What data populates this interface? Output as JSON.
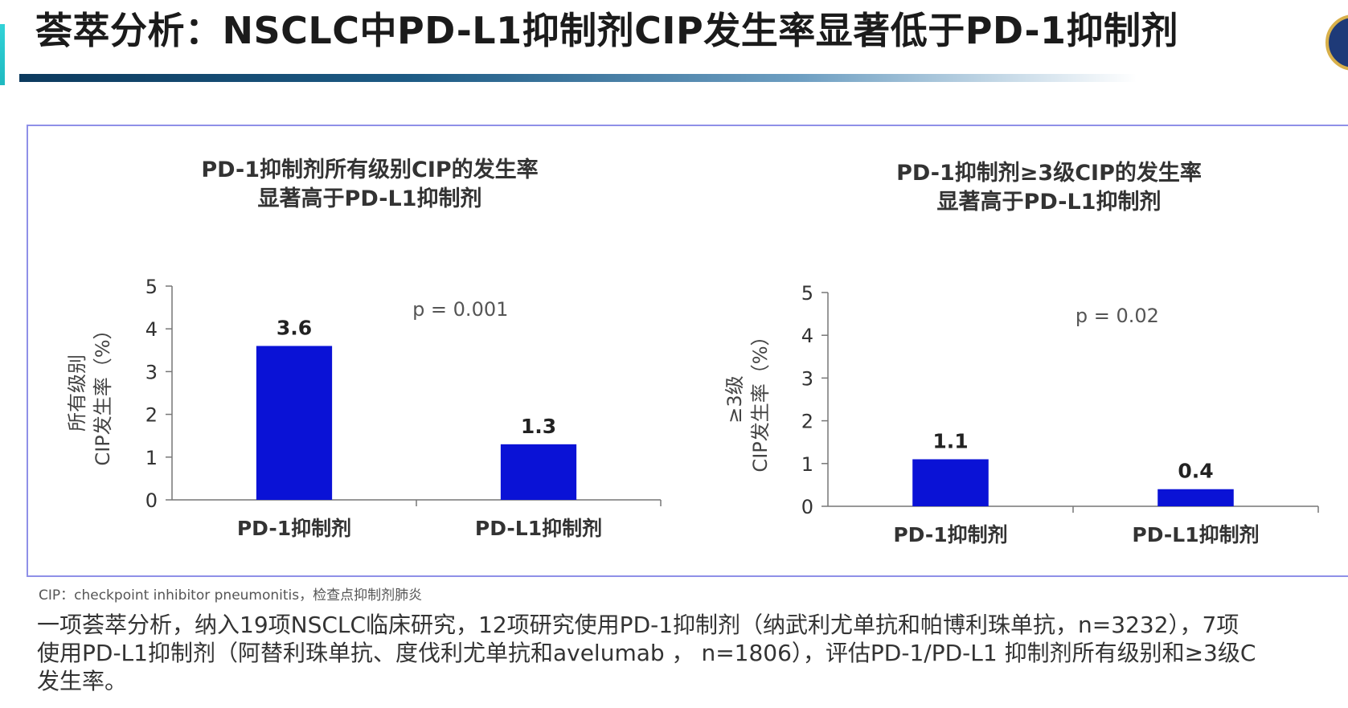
{
  "slide": {
    "title": "荟萃分析：NSCLC中PD-L1抑制剂CIP发生率显著低于PD-1抑制剂",
    "footnote": "CIP：checkpoint inhibitor pneumonitis，检查点抑制剂肺炎",
    "body_lines": [
      "一项荟萃分析，纳入19项NSCLC临床研究，12项研究使用PD-1抑制剂（纳武利尤单抗和帕博利珠单抗，n=3232），7项",
      "使用PD-L1抑制剂（阿替利珠单抗、度伐利尤单抗和avelumab ， n=1806），评估PD-1/PD-L1 抑制剂所有级别和≥3级C",
      "发生率。"
    ]
  },
  "chart_data": [
    {
      "type": "bar",
      "title": "PD-1抑制剂所有级别CIP的发生率",
      "subtitle": "显著高于PD-L1抑制剂",
      "ylabel_line1": "所有级别",
      "ylabel_line2": "CIP发生率（%）",
      "categories": [
        "PD-1抑制剂",
        "PD-L1抑制剂"
      ],
      "values": [
        3.6,
        1.3
      ],
      "value_labels": [
        "3.6",
        "1.3"
      ],
      "annotation": "p = 0.001",
      "ylim": [
        0,
        5
      ],
      "yticks": [
        "0",
        "1",
        "2",
        "3",
        "4",
        "5"
      ],
      "grid": false,
      "bar_color": "#0a12d6"
    },
    {
      "type": "bar",
      "title": "PD-1抑制剂≥3级CIP的发生率",
      "subtitle": "显著高于PD-L1抑制剂",
      "ylabel_line1": "≥3级",
      "ylabel_line2": "CIP发生率（%）",
      "categories": [
        "PD-1抑制剂",
        "PD-L1抑制剂"
      ],
      "values": [
        1.1,
        0.4
      ],
      "value_labels": [
        "1.1",
        "0.4"
      ],
      "annotation": "p = 0.02",
      "ylim": [
        0,
        5
      ],
      "yticks": [
        "0",
        "1",
        "2",
        "3",
        "4",
        "5"
      ],
      "grid": false,
      "bar_color": "#0a12d6"
    }
  ]
}
